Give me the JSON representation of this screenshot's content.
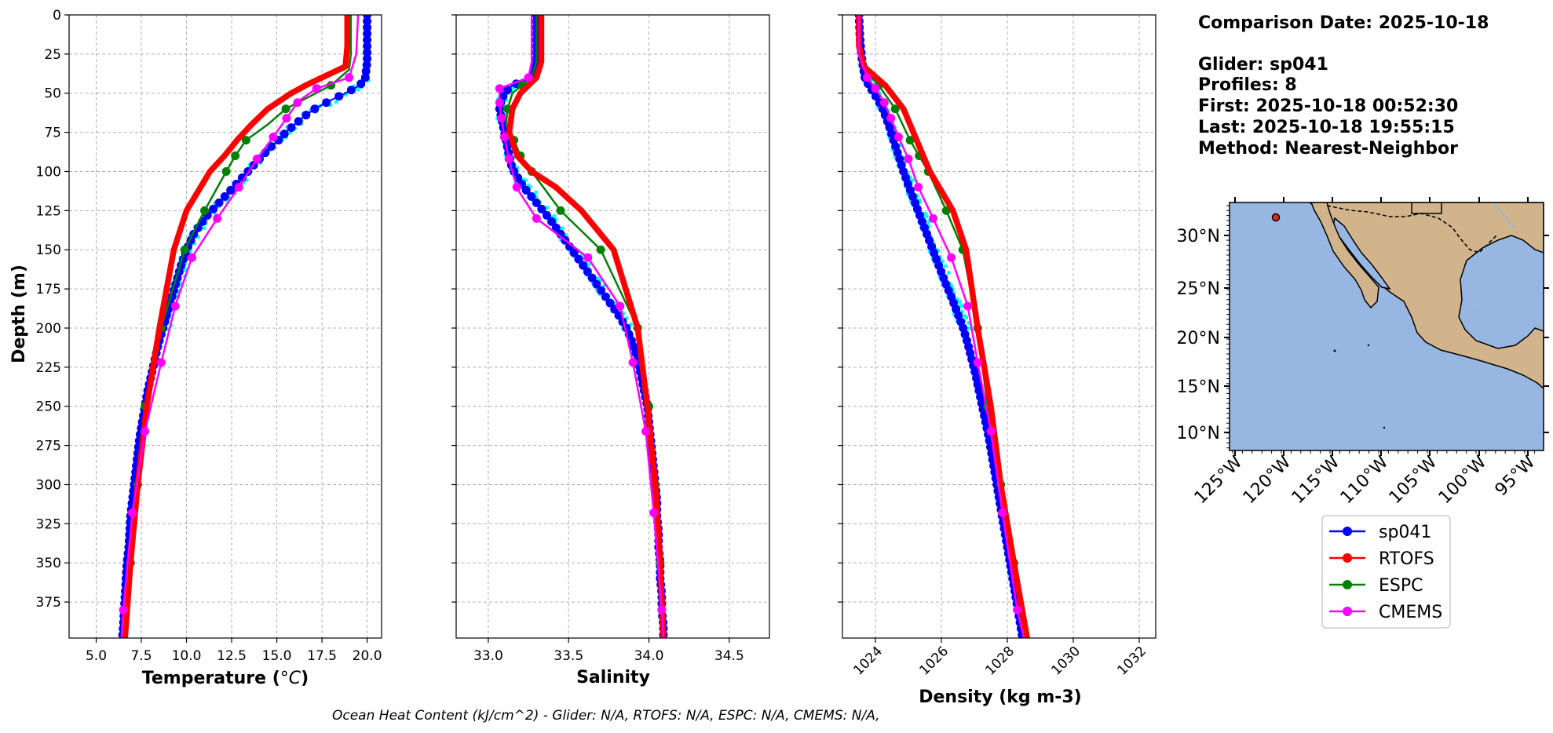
{
  "chart_data": [
    {
      "type": "line",
      "xlabel": "Temperature (°C)",
      "ylabel": "Depth (m)",
      "xlim": [
        3.5,
        20.8
      ],
      "ylim": [
        398,
        0
      ],
      "x_ticks": [
        5.0,
        7.5,
        10.0,
        12.5,
        15.0,
        17.5,
        20.0
      ],
      "x_tick_labels": [
        "5.0",
        "7.5",
        "10.0",
        "12.5",
        "15.0",
        "17.5",
        "20.0"
      ],
      "y_ticks": [
        0,
        25,
        50,
        75,
        100,
        125,
        150,
        175,
        200,
        225,
        250,
        275,
        300,
        325,
        350,
        375
      ],
      "grid": true,
      "series": [
        {
          "name": "sp041",
          "depth": [
            0,
            10,
            20,
            30,
            40,
            45,
            50,
            55,
            60,
            65,
            70,
            75,
            80,
            85,
            90,
            95,
            100,
            105,
            110,
            115,
            120,
            125,
            130,
            135,
            140,
            145,
            150,
            160,
            170,
            180,
            190,
            200,
            210,
            220,
            230,
            240,
            250,
            260,
            270,
            280,
            290,
            300,
            310,
            320,
            330,
            340,
            350,
            360,
            370,
            380,
            390,
            398
          ],
          "values": [
            20.0,
            20.0,
            20.0,
            20.0,
            19.9,
            19.6,
            18.8,
            17.9,
            17.1,
            16.5,
            16.0,
            15.5,
            15.1,
            14.6,
            14.2,
            13.8,
            13.4,
            13.0,
            12.6,
            12.2,
            11.8,
            11.4,
            11.0,
            10.7,
            10.4,
            10.2,
            10.0,
            9.7,
            9.45,
            9.2,
            8.95,
            8.7,
            8.45,
            8.25,
            8.05,
            7.85,
            7.7,
            7.55,
            7.4,
            7.3,
            7.2,
            7.1,
            7.0,
            6.9,
            6.85,
            6.8,
            6.7,
            6.65,
            6.6,
            6.55,
            6.5,
            6.45
          ]
        },
        {
          "name": "RTOFS",
          "depth": [
            0,
            20,
            33,
            40,
            45,
            50,
            60,
            70,
            80,
            90,
            100,
            125,
            150,
            200,
            250,
            300,
            350,
            398
          ],
          "values": [
            18.9,
            18.9,
            18.8,
            17.5,
            16.6,
            15.8,
            14.5,
            13.6,
            12.8,
            12.1,
            11.3,
            10.0,
            9.3,
            8.5,
            7.8,
            7.3,
            6.9,
            6.6
          ]
        },
        {
          "name": "ESPC",
          "depth": [
            0,
            25,
            35,
            45,
            60,
            70,
            80,
            90,
            100,
            125,
            150,
            200,
            250,
            300,
            350,
            398
          ],
          "values": [
            19.1,
            19.1,
            19.0,
            18.0,
            15.5,
            14.5,
            13.3,
            12.7,
            12.2,
            11.0,
            9.9,
            8.6,
            7.7,
            7.3,
            6.9,
            6.6
          ]
        },
        {
          "name": "CMEMS",
          "depth": [
            0,
            25,
            40,
            47,
            55,
            65,
            78,
            92,
            110,
            130,
            155,
            185,
            222,
            266,
            318,
            380,
            398
          ],
          "values": [
            19.5,
            19.4,
            19.0,
            17.2,
            16.2,
            15.6,
            14.8,
            13.9,
            12.9,
            11.7,
            10.3,
            9.4,
            8.6,
            7.7,
            7.0,
            6.5,
            6.4
          ]
        }
      ]
    },
    {
      "type": "line",
      "xlabel": "Salinity",
      "xlim": [
        32.8,
        34.75
      ],
      "ylim": [
        398,
        0
      ],
      "x_ticks": [
        33.0,
        33.5,
        34.0,
        34.5
      ],
      "x_tick_labels": [
        "33.0",
        "33.5",
        "34.0",
        "34.5"
      ],
      "grid": true,
      "series": [
        {
          "name": "sp041",
          "depth": [
            0,
            20,
            30,
            40,
            45,
            50,
            55,
            60,
            65,
            70,
            75,
            80,
            85,
            90,
            95,
            100,
            105,
            110,
            115,
            120,
            125,
            130,
            140,
            150,
            160,
            170,
            180,
            190,
            200,
            210,
            220,
            230,
            240,
            250,
            260,
            270,
            280,
            290,
            300,
            310,
            320,
            330,
            340,
            350,
            360,
            370,
            380,
            390,
            398
          ],
          "values": [
            33.3,
            33.3,
            33.3,
            33.27,
            33.15,
            33.1,
            33.08,
            33.07,
            33.08,
            33.09,
            33.1,
            33.11,
            33.12,
            33.13,
            33.14,
            33.16,
            33.19,
            33.22,
            33.26,
            33.3,
            33.34,
            33.38,
            33.45,
            33.52,
            33.59,
            33.66,
            33.73,
            33.8,
            33.86,
            33.9,
            33.93,
            33.95,
            33.97,
            33.99,
            34.0,
            34.01,
            34.02,
            34.03,
            34.04,
            34.05,
            34.05,
            34.06,
            34.06,
            34.07,
            34.07,
            34.08,
            34.08,
            34.09,
            34.09
          ]
        },
        {
          "name": "RTOFS",
          "depth": [
            0,
            30,
            40,
            50,
            60,
            75,
            90,
            100,
            110,
            125,
            150,
            200,
            250,
            300,
            350,
            398
          ],
          "values": [
            33.33,
            33.33,
            33.3,
            33.2,
            33.15,
            33.13,
            33.18,
            33.27,
            33.42,
            33.58,
            33.78,
            33.93,
            33.99,
            34.04,
            34.07,
            34.09
          ]
        },
        {
          "name": "ESPC",
          "depth": [
            0,
            30,
            40,
            50,
            60,
            70,
            80,
            90,
            100,
            125,
            150,
            200,
            250,
            300,
            350,
            398
          ],
          "values": [
            33.3,
            33.3,
            33.27,
            33.15,
            33.12,
            33.11,
            33.16,
            33.2,
            33.27,
            33.45,
            33.7,
            33.93,
            34.0,
            34.04,
            34.07,
            34.09
          ]
        },
        {
          "name": "CMEMS",
          "depth": [
            0,
            30,
            40,
            47,
            56,
            65,
            78,
            93,
            111,
            130,
            155,
            186,
            222,
            266,
            318,
            380,
            398
          ],
          "values": [
            33.27,
            33.27,
            33.25,
            33.07,
            33.07,
            33.08,
            33.1,
            33.13,
            33.18,
            33.3,
            33.62,
            33.82,
            33.9,
            33.98,
            34.03,
            34.08,
            34.09
          ]
        }
      ]
    },
    {
      "type": "line",
      "xlabel": "Density (kg m-3)",
      "xlim": [
        1023.0,
        1032.5
      ],
      "ylim": [
        398,
        0
      ],
      "x_ticks": [
        1024,
        1026,
        1028,
        1030,
        1032
      ],
      "x_tick_labels": [
        "1024",
        "1026",
        "1028",
        "1030",
        "1032"
      ],
      "grid": true,
      "series": [
        {
          "name": "sp041",
          "depth": [
            0,
            10,
            20,
            30,
            40,
            45,
            50,
            55,
            60,
            70,
            80,
            90,
            100,
            110,
            120,
            130,
            140,
            150,
            160,
            170,
            180,
            190,
            200,
            210,
            220,
            230,
            240,
            250,
            260,
            270,
            280,
            290,
            300,
            310,
            320,
            330,
            340,
            350,
            360,
            370,
            380,
            390,
            398
          ],
          "values": [
            1023.5,
            1023.52,
            1023.55,
            1023.6,
            1023.68,
            1023.8,
            1023.95,
            1024.1,
            1024.22,
            1024.4,
            1024.55,
            1024.7,
            1024.85,
            1025.02,
            1025.2,
            1025.38,
            1025.56,
            1025.74,
            1025.92,
            1026.1,
            1026.3,
            1026.48,
            1026.66,
            1026.8,
            1026.92,
            1027.04,
            1027.14,
            1027.24,
            1027.34,
            1027.44,
            1027.52,
            1027.6,
            1027.68,
            1027.76,
            1027.84,
            1027.92,
            1028.0,
            1028.08,
            1028.16,
            1028.24,
            1028.32,
            1028.4,
            1028.46
          ]
        },
        {
          "name": "RTOFS",
          "depth": [
            0,
            20,
            33,
            45,
            60,
            75,
            90,
            100,
            125,
            150,
            200,
            250,
            300,
            350,
            398
          ],
          "values": [
            1023.5,
            1023.5,
            1023.65,
            1024.3,
            1024.85,
            1025.15,
            1025.45,
            1025.65,
            1026.35,
            1026.75,
            1027.1,
            1027.5,
            1027.8,
            1028.2,
            1028.6
          ]
        },
        {
          "name": "ESPC",
          "depth": [
            0,
            25,
            35,
            45,
            60,
            80,
            100,
            125,
            150,
            200,
            250,
            300,
            350,
            398
          ],
          "values": [
            1023.5,
            1023.55,
            1023.65,
            1024.1,
            1024.6,
            1025.05,
            1025.6,
            1026.15,
            1026.65,
            1027.1,
            1027.4,
            1027.8,
            1028.2,
            1028.5
          ]
        },
        {
          "name": "CMEMS",
          "depth": [
            0,
            25,
            40,
            47,
            55,
            65,
            78,
            92,
            110,
            130,
            155,
            186,
            222,
            266,
            318,
            380,
            398
          ],
          "values": [
            1023.5,
            1023.5,
            1023.75,
            1024.0,
            1024.25,
            1024.45,
            1024.7,
            1025.0,
            1025.3,
            1025.75,
            1026.3,
            1026.8,
            1027.1,
            1027.5,
            1027.85,
            1028.3,
            1028.5
          ]
        }
      ]
    }
  ],
  "panels": {
    "depth_label": "Depth (m)",
    "temperature_label_main": "Temperature (",
    "temperature_label_unit": "°C",
    "temperature_label_close": ")",
    "salinity_label": "Salinity",
    "density_label": "Density (kg m-3)",
    "y_tick_labels": [
      "0",
      "25",
      "50",
      "75",
      "100",
      "125",
      "150",
      "175",
      "200",
      "225",
      "250",
      "275",
      "300",
      "325",
      "350",
      "375"
    ]
  },
  "info": {
    "comparison_date": "Comparison Date: 2025-10-18",
    "glider": "Glider: sp041",
    "profiles": "Profiles: 8",
    "first": "First: 2025-10-18 00:52:30",
    "last": "Last: 2025-10-18 19:55:15",
    "method": "Method: Nearest-Neighbor"
  },
  "map": {
    "lat_labels": [
      "30°N",
      "25°N",
      "20°N",
      "15°N",
      "10°N"
    ],
    "lon_labels": [
      "125°W",
      "120°W",
      "115°W",
      "110°W",
      "105°W",
      "100°W",
      "95°W"
    ],
    "glider_position": {
      "lon": -121.0,
      "lat": 32.0
    },
    "ocean_color": "#97b6e1",
    "land_color": "#d2b48c",
    "marker_color": "#e8261e"
  },
  "legend": {
    "items": [
      {
        "label": "sp041",
        "color": "#0000ff"
      },
      {
        "label": "RTOFS",
        "color": "#ff0000"
      },
      {
        "label": "ESPC",
        "color": "#008000"
      },
      {
        "label": "CMEMS",
        "color": "#ff00ff"
      }
    ]
  },
  "colors": {
    "glider_raw": "#00ffff",
    "sp041": "#0000ff",
    "rtofs": "#ff0000",
    "espc": "#008000",
    "cmems": "#ff00ff",
    "grid": "#b0b0b0"
  },
  "footnote": "Ocean Heat Content (kJ/cm^2) - Glider: N/A,  RTOFS: N/A,  ESPC: N/A,  CMEMS: N/A,"
}
